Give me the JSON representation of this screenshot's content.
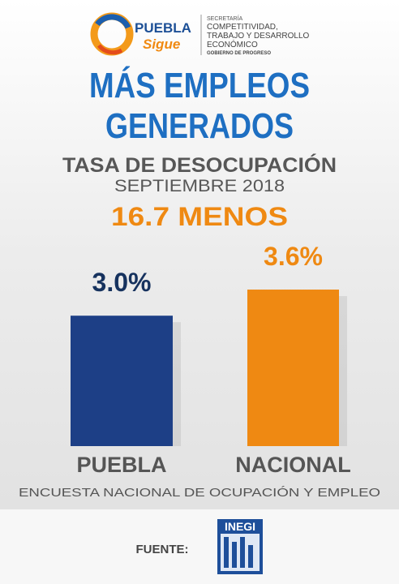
{
  "header": {
    "brand": "PUEBLA",
    "tagline": "Sigue",
    "agency_lines": [
      "SECRETARÍA",
      "COMPETITIVIDAD,",
      "TRABAJO Y DESARROLLO",
      "ECONÓMICO"
    ],
    "motto": "GOBIERNO DE PROGRESO"
  },
  "chart_data": {
    "type": "bar",
    "title": [
      "MÁS EMPLEOS",
      "GENERADOS"
    ],
    "subtitle": "TASA DE DESOCUPACIÓN",
    "period": "SEPTIEMBRE 2018",
    "annotation": "16.7 MENOS",
    "categories": [
      "PUEBLA",
      "NACIONAL"
    ],
    "values": [
      3.0,
      3.6
    ],
    "value_labels": [
      "3.0%",
      "3.6%"
    ],
    "colors": [
      "#1d3f86",
      "#ef8912"
    ]
  },
  "footer": {
    "survey": "ENCUESTA NACIONAL DE OCUPACIÓN Y EMPLEO",
    "source_label": "FUENTE:",
    "source": "INEGI"
  }
}
